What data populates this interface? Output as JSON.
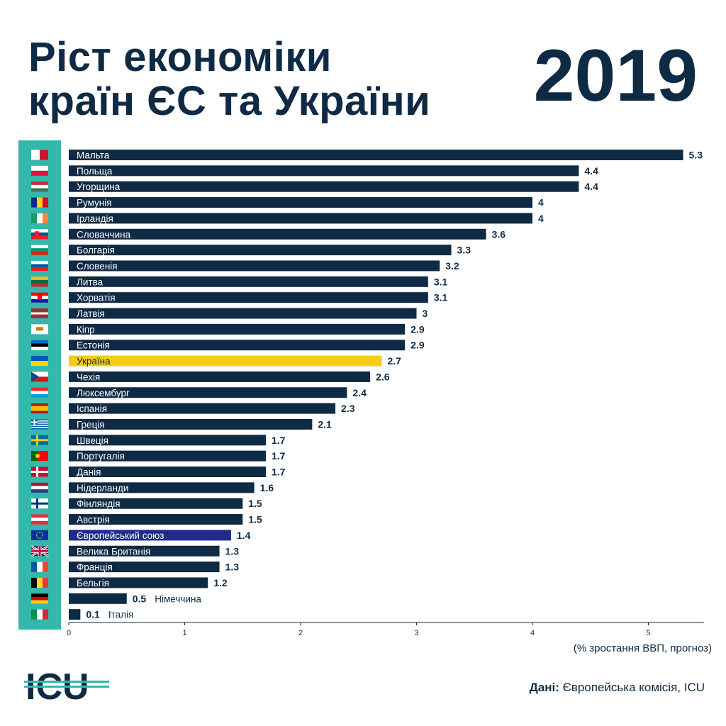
{
  "header": {
    "title_line1": "Ріст економіки",
    "title_line2": "країн ЄС та України",
    "year": "2019"
  },
  "footer": {
    "unit_note": "(% зростання ВВП, прогноз)",
    "source_label": "Дані:",
    "source_text": " Європейська комісія, ICU",
    "logo_text": "ICU"
  },
  "colors": {
    "bar": "#0f2a44",
    "highlight_ukraine": "#f5cd19",
    "highlight_eu": "#1f2a8c",
    "flag_panel": "#34b8ad",
    "logo_stripes": "#34b8ad"
  },
  "chart_data": {
    "type": "bar",
    "orientation": "horizontal",
    "categories": [
      "Мальта",
      "Польща",
      "Угорщина",
      "Румунія",
      "Ірландія",
      "Словаччина",
      "Болгарія",
      "Словенія",
      "Литва",
      "Хорватія",
      "Латвія",
      "Кіпр",
      "Естонія",
      "Україна",
      "Чехія",
      "Люксембург",
      "Іспанія",
      "Греція",
      "Швеція",
      "Португалія",
      "Данія",
      "Нідерланди",
      "Фінляндія",
      "Австрія",
      "Європейський союз",
      "Велика Британія",
      "Франція",
      "Бельгія",
      "Німеччина",
      "Італія"
    ],
    "values": [
      5.3,
      4.4,
      4.4,
      4,
      4,
      3.6,
      3.3,
      3.2,
      3.1,
      3.1,
      3,
      2.9,
      2.9,
      2.7,
      2.6,
      2.4,
      2.3,
      2.1,
      1.7,
      1.7,
      1.7,
      1.6,
      1.5,
      1.5,
      1.4,
      1.3,
      1.3,
      1.2,
      0.5,
      0.1
    ],
    "value_labels": [
      "5.3",
      "4.4",
      "4.4",
      "4",
      "4",
      "3.6",
      "3.3",
      "3.2",
      "3.1",
      "3.1",
      "3",
      "2.9",
      "2.9",
      "2.7",
      "2.6",
      "2.4",
      "2.3",
      "2.1",
      "1.7",
      "1.7",
      "1.7",
      "1.6",
      "1.5",
      "1.5",
      "1.4",
      "1.3",
      "1.3",
      "1.2",
      "0.5",
      "0.1"
    ],
    "highlight": {
      "Україна": "#f5cd19",
      "Європейський союз": "#1f2a8c"
    },
    "flags": [
      "malta-flag",
      "poland-flag",
      "hungary-flag",
      "romania-flag",
      "ireland-flag",
      "slovakia-flag",
      "bulgaria-flag",
      "slovenia-flag",
      "lithuania-flag",
      "croatia-flag",
      "latvia-flag",
      "cyprus-flag",
      "estonia-flag",
      "ukraine-flag",
      "czechia-flag",
      "luxembourg-flag",
      "spain-flag",
      "greece-flag",
      "sweden-flag",
      "portugal-flag",
      "denmark-flag",
      "netherlands-flag",
      "finland-flag",
      "austria-flag",
      "eu-flag",
      "uk-flag",
      "france-flag",
      "belgium-flag",
      "germany-flag",
      "italy-flag"
    ],
    "xticks": [
      "0",
      "1",
      "2",
      "3",
      "4",
      "5"
    ],
    "xlim": [
      0,
      5.45
    ],
    "xlabel": "(% зростання ВВП, прогноз)",
    "title": "Ріст економіки країн ЄС та України",
    "grid": false
  }
}
